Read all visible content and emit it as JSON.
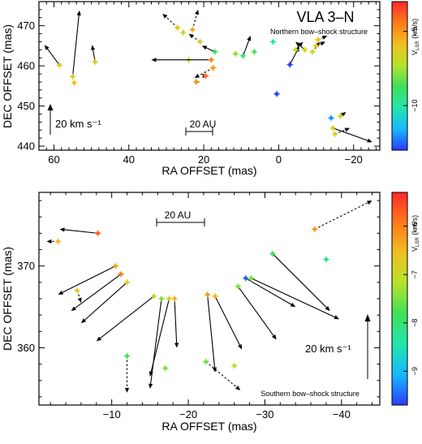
{
  "colors": {
    "vector": "#000000",
    "colorbar_stops": [
      "#2b3cff",
      "#17b8ff",
      "#22e6ad",
      "#3ee05a",
      "#b6e32a",
      "#f0c020",
      "#ff7a1a",
      "#ff2a2a"
    ]
  },
  "chart_data": [
    {
      "type": "scatter",
      "title": "VLA 3–N",
      "subtitle": "Northern bow–shock structure",
      "xlabel": "RA OFFSET (mas)",
      "ylabel": "DEC OFFSET (mas)",
      "xlim": [
        64,
        -27
      ],
      "ylim": [
        439,
        476
      ],
      "x_ticks": [
        60,
        40,
        20,
        0,
        -20
      ],
      "x_tick_labels": [
        "60",
        "40",
        "20",
        "0",
        "−20"
      ],
      "y_ticks": [
        440,
        450,
        460,
        470
      ],
      "y_tick_labels": [
        "440",
        "450",
        "460",
        "470"
      ],
      "scale_bar_label": "20 AU",
      "velocity_key_label": "20 km s⁻¹",
      "colorbar": {
        "label": "V_LSR (km/s)",
        "vmin": -13,
        "vmax": -3,
        "ticks": [
          -5,
          -10
        ],
        "tick_labels": [
          "−5",
          "−10"
        ]
      },
      "spots": [
        {
          "x": 58.5,
          "y": 460.2,
          "v": -6.4,
          "dx": 4.0,
          "dy": 5.0,
          "solid": true
        },
        {
          "x": 55.0,
          "y": 457.3,
          "v": -6.6,
          "dx": -1.8,
          "dy": 16.5,
          "solid": true
        },
        {
          "x": 54.6,
          "y": 455.8,
          "v": -6.0,
          "dx": 0,
          "dy": 0,
          "solid": true
        },
        {
          "x": 49.0,
          "y": 461.0,
          "v": -6.5,
          "dx": 0.8,
          "dy": 4.2,
          "solid": true
        },
        {
          "x": 25.5,
          "y": 468.3,
          "v": -6.8,
          "dx": 0,
          "dy": 0,
          "solid": true
        },
        {
          "x": 27.0,
          "y": 469.5,
          "v": -6.0,
          "dx": 4.0,
          "dy": 3.5,
          "solid": false
        },
        {
          "x": 23.0,
          "y": 469.0,
          "v": -5.5,
          "dx": -1.5,
          "dy": 5.0,
          "solid": false
        },
        {
          "x": 21.0,
          "y": 466.0,
          "v": -6.5,
          "dx": 3.0,
          "dy": 2.0,
          "solid": false
        },
        {
          "x": 24.0,
          "y": 461.5,
          "v": -7.2,
          "dx": 0,
          "dy": 0,
          "solid": true
        },
        {
          "x": 18.0,
          "y": 461.5,
          "v": -4.6,
          "dx": 16.0,
          "dy": 0.0,
          "solid": true
        },
        {
          "x": 17.5,
          "y": 459.5,
          "v": -5.0,
          "dx": 5.0,
          "dy": -2.5,
          "solid": false
        },
        {
          "x": 22.0,
          "y": 456.0,
          "v": -5.0,
          "dx": -1.0,
          "dy": 0.0,
          "solid": true
        },
        {
          "x": 19.5,
          "y": 457.5,
          "v": -4.2,
          "dx": -0.5,
          "dy": 0.0,
          "solid": true
        },
        {
          "x": 17.0,
          "y": 463.5,
          "v": -9.0,
          "dx": 3.5,
          "dy": 1.5,
          "solid": true
        },
        {
          "x": 9.5,
          "y": 462.5,
          "v": -9.2,
          "dx": -2.0,
          "dy": 5.0,
          "solid": true
        },
        {
          "x": 11.5,
          "y": 463.0,
          "v": -7.8,
          "dx": 0,
          "dy": 0,
          "solid": true
        },
        {
          "x": 6.5,
          "y": 463.5,
          "v": -8.5,
          "dx": 0,
          "dy": 0,
          "solid": true
        },
        {
          "x": 1.5,
          "y": 466.0,
          "v": -10.0,
          "dx": 0,
          "dy": 0,
          "solid": true
        },
        {
          "x": 0.5,
          "y": 453.0,
          "v": -13.0,
          "dx": 0,
          "dy": 0,
          "solid": true
        },
        {
          "x": -3.0,
          "y": 460.3,
          "v": -13.0,
          "dx": -2.5,
          "dy": 4.5,
          "solid": true
        },
        {
          "x": -7.0,
          "y": 464.0,
          "v": -6.5,
          "dx": 2.5,
          "dy": 2.0,
          "solid": true
        },
        {
          "x": -9.0,
          "y": 463.5,
          "v": -7.0,
          "dx": -2.0,
          "dy": 2.5,
          "solid": false
        },
        {
          "x": -10.0,
          "y": 465.0,
          "v": -6.0,
          "dx": -2.5,
          "dy": 1.0,
          "solid": false
        },
        {
          "x": -10.5,
          "y": 466.5,
          "v": -6.0,
          "dx": -2.5,
          "dy": 1.0,
          "solid": false
        },
        {
          "x": -4.5,
          "y": 464.0,
          "v": -7.0,
          "dx": -2.0,
          "dy": 2.0,
          "solid": true
        },
        {
          "x": -14.0,
          "y": 447.0,
          "v": -12.0,
          "dx": 0,
          "dy": 0,
          "solid": true
        },
        {
          "x": -14.5,
          "y": 444.5,
          "v": -6.0,
          "dx": -10.5,
          "dy": -3.5,
          "solid": true
        },
        {
          "x": -15.0,
          "y": 443.0,
          "v": -6.5,
          "dx": -4.0,
          "dy": 1.5,
          "solid": false
        },
        {
          "x": -16.5,
          "y": 447.5,
          "v": -6.5,
          "dx": -1.5,
          "dy": 1.0,
          "solid": false
        }
      ]
    },
    {
      "type": "scatter",
      "subtitle": "Southern bow–shock structure",
      "xlabel": "RA OFFSET (mas)",
      "ylabel": "DEC OFFSET (mas)",
      "xlim": [
        -0.5,
        -45
      ],
      "ylim": [
        353,
        379
      ],
      "x_ticks": [
        -10,
        -20,
        -30,
        -40
      ],
      "x_tick_labels": [
        "−10",
        "−20",
        "−30",
        "−40"
      ],
      "y_ticks": [
        360,
        370
      ],
      "y_tick_labels": [
        "360",
        "370"
      ],
      "scale_bar_label": "20 AU",
      "velocity_key_label": "20 km s⁻¹",
      "colorbar": {
        "label": "V_LSR (km/s)",
        "vmin": -9.7,
        "vmax": -5.3,
        "ticks": [
          -6,
          -7,
          -8,
          -9
        ],
        "tick_labels": [
          "−6",
          "−7",
          "−8",
          "−9"
        ]
      },
      "spots": [
        {
          "x": -3.0,
          "y": 373.0,
          "v": -6.5,
          "dx": 1.5,
          "dy": 0.0,
          "solid": false
        },
        {
          "x": -8.2,
          "y": 374.0,
          "v": -5.7,
          "dx": 5.0,
          "dy": 0.5,
          "solid": true
        },
        {
          "x": -5.5,
          "y": 367.0,
          "v": -6.8,
          "dx": -0.5,
          "dy": -1.5,
          "solid": false
        },
        {
          "x": -10.5,
          "y": 370.0,
          "v": -6.3,
          "dx": 7.5,
          "dy": -3.5,
          "solid": true
        },
        {
          "x": -11.2,
          "y": 369.0,
          "v": -5.9,
          "dx": 6.5,
          "dy": -4.5,
          "solid": true
        },
        {
          "x": -12.0,
          "y": 368.0,
          "v": -6.8,
          "dx": 6.0,
          "dy": -5.0,
          "solid": true
        },
        {
          "x": -15.5,
          "y": 366.3,
          "v": -7.0,
          "dx": 7.5,
          "dy": -5.5,
          "solid": true
        },
        {
          "x": -16.5,
          "y": 366.0,
          "v": -7.5,
          "dx": 1.5,
          "dy": -11.0,
          "solid": true
        },
        {
          "x": -17.5,
          "y": 366.0,
          "v": -6.8,
          "dx": 2.5,
          "dy": -9.5,
          "solid": true
        },
        {
          "x": -18.2,
          "y": 366.0,
          "v": -6.5,
          "dx": -0.3,
          "dy": -6.0,
          "solid": true
        },
        {
          "x": -12.0,
          "y": 359.0,
          "v": -7.8,
          "dx": 0.0,
          "dy": -4.5,
          "solid": false
        },
        {
          "x": -17.0,
          "y": 357.5,
          "v": -7.5,
          "dx": 0,
          "dy": 0,
          "solid": true
        },
        {
          "x": -22.5,
          "y": 366.5,
          "v": -6.2,
          "dx": -1.0,
          "dy": -9.5,
          "solid": true
        },
        {
          "x": -23.5,
          "y": 366.3,
          "v": -6.5,
          "dx": -3.5,
          "dy": -6.5,
          "solid": true
        },
        {
          "x": -22.3,
          "y": 358.3,
          "v": -7.6,
          "dx": -4.5,
          "dy": -3.5,
          "solid": false
        },
        {
          "x": -26.0,
          "y": 357.8,
          "v": -7.0,
          "dx": 0,
          "dy": 0,
          "solid": true
        },
        {
          "x": -26.5,
          "y": 367.5,
          "v": -7.5,
          "dx": -5.0,
          "dy": -6.5,
          "solid": true
        },
        {
          "x": -27.5,
          "y": 368.5,
          "v": -9.5,
          "dx": -6.5,
          "dy": -3.5,
          "solid": true
        },
        {
          "x": -28.2,
          "y": 368.5,
          "v": -7.5,
          "dx": -11.5,
          "dy": -5.0,
          "solid": true
        },
        {
          "x": -31.0,
          "y": 371.5,
          "v": -7.8,
          "dx": -7.5,
          "dy": -7.0,
          "solid": true
        },
        {
          "x": -36.5,
          "y": 374.5,
          "v": -6.2,
          "dx": -7.5,
          "dy": 3.5,
          "solid": false
        },
        {
          "x": -38.0,
          "y": 370.8,
          "v": -8.2,
          "dx": 0,
          "dy": 0,
          "solid": true
        }
      ]
    }
  ]
}
